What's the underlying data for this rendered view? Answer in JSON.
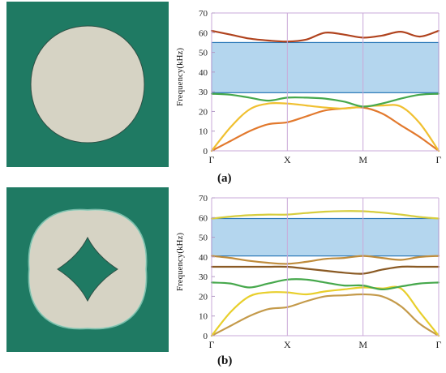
{
  "figure": {
    "panel_a_label": "(a)",
    "panel_b_label": "(b)",
    "colors": {
      "matrix": "#1f7a63",
      "inclusion": "#d6d3c4",
      "bandgap": "#b4d6ee",
      "bandgap_edge": "#2a78b8",
      "axis": "#c9a8d8"
    }
  },
  "chart_data": [
    {
      "type": "line",
      "panel": "(a)",
      "ylabel": "Frequency(kHz)",
      "xlabel": "",
      "x_tick_labels": [
        "Γ",
        "X",
        "M",
        "Γ"
      ],
      "x_positions": [
        0,
        1,
        2,
        3
      ],
      "y_ticks": [
        0,
        10,
        20,
        30,
        40,
        50,
        60,
        70
      ],
      "ylim": [
        0,
        70
      ],
      "grid": false,
      "bandgap": [
        29.5,
        55
      ],
      "series": [
        {
          "color": "#e2792d",
          "x": [
            0,
            0.25,
            0.5,
            0.75,
            1,
            1.25,
            1.5,
            1.75,
            2,
            2.25,
            2.5,
            2.75,
            3
          ],
          "y": [
            0,
            5,
            10,
            13.5,
            14.5,
            17.5,
            20.5,
            21.5,
            22,
            19,
            13,
            7,
            0
          ]
        },
        {
          "color": "#f0c030",
          "x": [
            0,
            0.25,
            0.5,
            0.75,
            1,
            1.25,
            1.5,
            1.75,
            2,
            2.25,
            2.5,
            2.75,
            3
          ],
          "y": [
            0,
            12,
            21,
            24,
            24,
            23,
            22,
            21.5,
            22.5,
            23,
            22.5,
            14,
            0
          ]
        },
        {
          "color": "#46a84c",
          "x": [
            0,
            0.25,
            0.5,
            0.75,
            1,
            1.25,
            1.5,
            1.75,
            2,
            2.25,
            2.5,
            2.75,
            3
          ],
          "y": [
            29,
            28.5,
            27,
            25.5,
            27,
            27,
            26.5,
            25,
            22.5,
            24,
            26.5,
            28.5,
            29
          ]
        },
        {
          "color": "#b0431e",
          "x": [
            0,
            0.25,
            0.5,
            0.75,
            1,
            1.25,
            1.5,
            1.75,
            2,
            2.25,
            2.5,
            2.75,
            3
          ],
          "y": [
            61,
            59,
            57,
            56,
            55.5,
            56.5,
            60,
            59,
            57.5,
            58.5,
            60.5,
            58,
            61
          ]
        }
      ]
    },
    {
      "type": "line",
      "panel": "(b)",
      "ylabel": "Frequency(kHz)",
      "xlabel": "",
      "x_tick_labels": [
        "Γ",
        "X",
        "M",
        "Γ"
      ],
      "x_positions": [
        0,
        1,
        2,
        3
      ],
      "y_ticks": [
        0,
        10,
        20,
        30,
        40,
        50,
        60,
        70
      ],
      "ylim": [
        0,
        70
      ],
      "grid": false,
      "bandgap": [
        40.5,
        59.5
      ],
      "series": [
        {
          "color": "#c49a4a",
          "x": [
            0,
            0.25,
            0.5,
            0.75,
            1,
            1.25,
            1.5,
            1.75,
            2,
            2.25,
            2.5,
            2.75,
            3
          ],
          "y": [
            0,
            5,
            10,
            13.5,
            14.5,
            17.5,
            20,
            20.5,
            21,
            20,
            15,
            6,
            0
          ]
        },
        {
          "color": "#e8cf2c",
          "x": [
            0,
            0.25,
            0.5,
            0.75,
            1,
            1.25,
            1.5,
            1.75,
            2,
            2.25,
            2.5,
            2.75,
            3
          ],
          "y": [
            0,
            12,
            20,
            22,
            22,
            21,
            22.5,
            23.5,
            24.5,
            24,
            24,
            12,
            0
          ]
        },
        {
          "color": "#46a84c",
          "x": [
            0,
            0.25,
            0.5,
            0.75,
            1,
            1.25,
            1.5,
            1.75,
            2,
            2.25,
            2.5,
            2.75,
            3
          ],
          "y": [
            27,
            26.5,
            24.5,
            26.5,
            28.5,
            28.5,
            27,
            25.5,
            25.5,
            23.5,
            25,
            26.5,
            27
          ]
        },
        {
          "color": "#8a5a24",
          "x": [
            0,
            0.25,
            0.5,
            0.75,
            1,
            1.25,
            1.5,
            1.75,
            2,
            2.25,
            2.5,
            2.75,
            3
          ],
          "y": [
            35,
            35,
            35,
            35,
            35,
            34,
            33,
            32,
            31.5,
            33.5,
            35,
            35,
            35
          ]
        },
        {
          "color": "#bf8c3c",
          "x": [
            0,
            0.25,
            0.5,
            0.75,
            1,
            1.25,
            1.5,
            1.75,
            2,
            2.25,
            2.5,
            2.75,
            3
          ],
          "y": [
            40.5,
            39.5,
            38,
            37,
            36.5,
            37.5,
            39,
            39.5,
            40.5,
            39.5,
            38.5,
            40,
            40.5
          ]
        },
        {
          "color": "#d6cd3e",
          "x": [
            0,
            0.25,
            0.5,
            0.75,
            1,
            1.25,
            1.5,
            1.75,
            2,
            2.25,
            2.5,
            2.75,
            3
          ],
          "y": [
            59.5,
            60.5,
            61.2,
            61.5,
            61.5,
            62.3,
            63,
            63.3,
            63.2,
            62.5,
            61.5,
            60.3,
            59.5
          ]
        }
      ]
    }
  ]
}
